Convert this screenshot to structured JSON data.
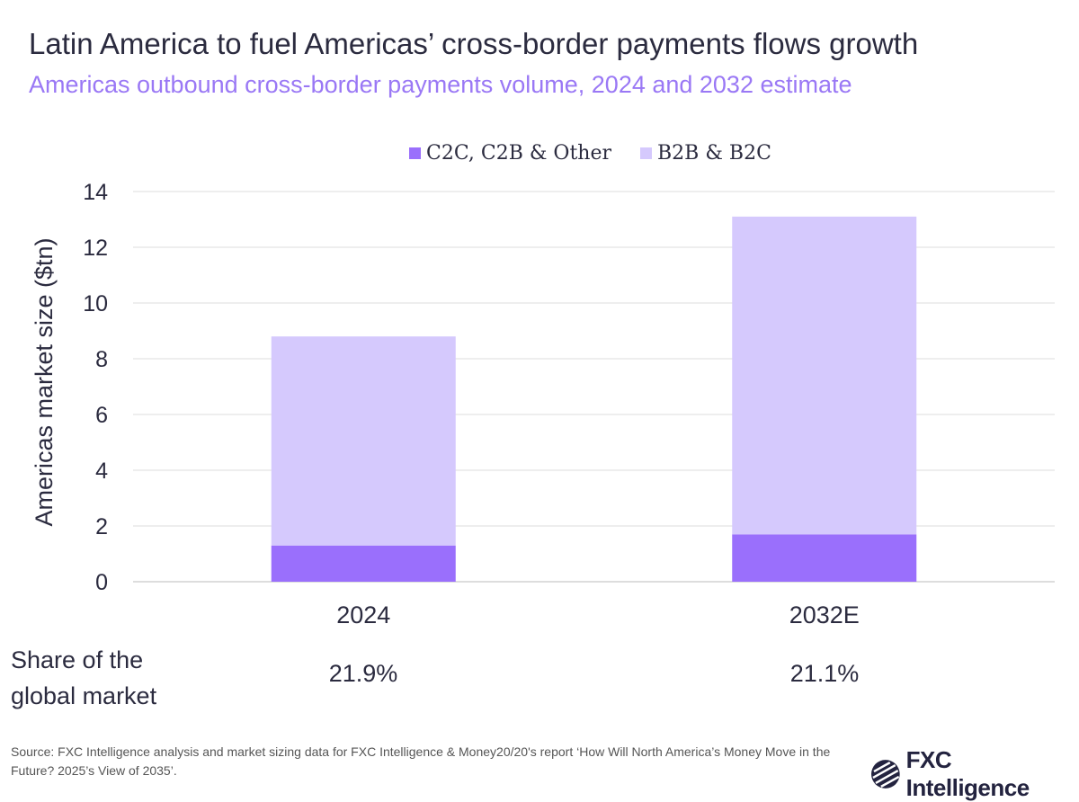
{
  "title": "Latin America to fuel Americas’ cross-border payments flows growth",
  "subtitle": "Americas outbound cross-border payments volume, 2024 and 2032 estimate",
  "chart_data": {
    "type": "bar",
    "stacked": true,
    "categories": [
      "2024",
      "2032E"
    ],
    "series": [
      {
        "name": "C2C, C2B & Other",
        "values": [
          1.3,
          1.7
        ],
        "color": "#9a6ffc"
      },
      {
        "name": "B2B & B2C",
        "values": [
          7.5,
          11.4
        ],
        "color": "#d5c9fd"
      }
    ],
    "ylabel": "Americas market size ($tn)",
    "ylim": [
      0,
      14
    ],
    "yticks": [
      "0",
      "2",
      "4",
      "6",
      "8",
      "10",
      "12",
      "14"
    ],
    "grid": true,
    "legend": "top"
  },
  "share": {
    "label": "Share of the global market",
    "values": [
      "21.9%",
      "21.1%"
    ]
  },
  "source": "Source: FXC Intelligence analysis and market sizing data for FXC Intelligence & Money20/20's report ‘How Will North America’s Money Move in the Future? 2025’s View of 2035’.",
  "logo": "FXC Intelligence"
}
